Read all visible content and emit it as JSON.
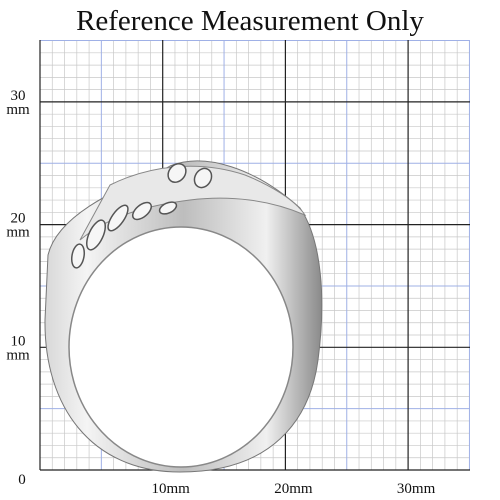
{
  "title": "Reference Measurement Only",
  "origin_label": "0",
  "y_labels": [
    {
      "value": "10",
      "unit": "mm"
    },
    {
      "value": "20",
      "unit": "mm"
    },
    {
      "value": "30",
      "unit": "mm"
    }
  ],
  "x_labels": [
    "10mm",
    "20mm",
    "30mm"
  ]
}
